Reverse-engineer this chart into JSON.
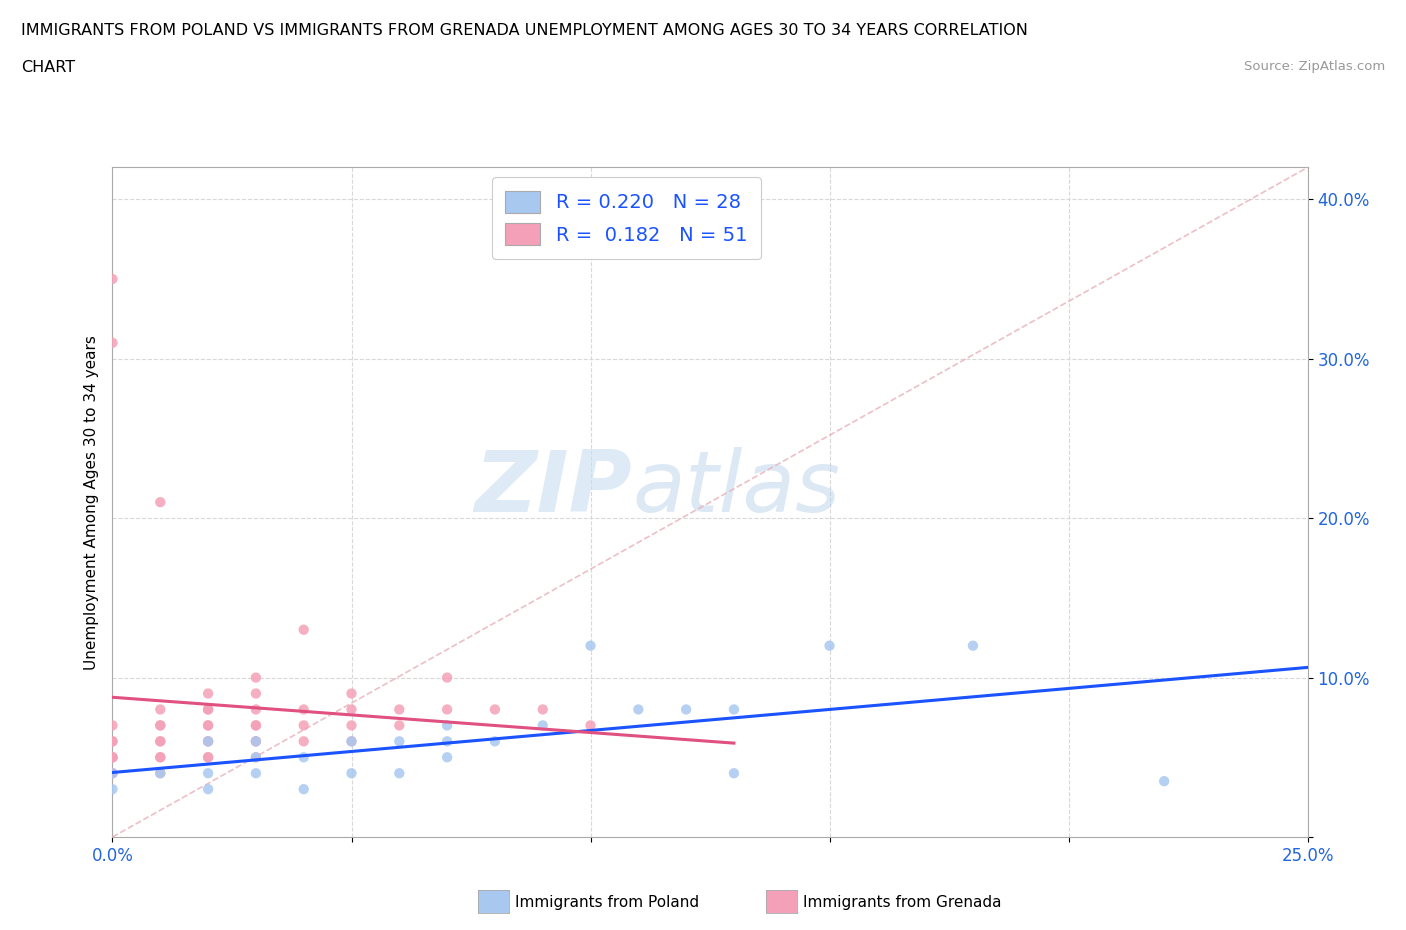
{
  "title_line1": "IMMIGRANTS FROM POLAND VS IMMIGRANTS FROM GRENADA UNEMPLOYMENT AMONG AGES 30 TO 34 YEARS CORRELATION",
  "title_line2": "CHART",
  "source_text": "Source: ZipAtlas.com",
  "ylabel": "Unemployment Among Ages 30 to 34 years",
  "xlim": [
    0.0,
    0.25
  ],
  "ylim": [
    0.0,
    0.42
  ],
  "x_ticks": [
    0.0,
    0.05,
    0.1,
    0.15,
    0.2,
    0.25
  ],
  "x_tick_labels": [
    "0.0%",
    "",
    "",
    "",
    "",
    "25.0%"
  ],
  "y_ticks": [
    0.0,
    0.1,
    0.2,
    0.3,
    0.4
  ],
  "y_tick_labels": [
    "",
    "10.0%",
    "20.0%",
    "30.0%",
    "40.0%"
  ],
  "poland_color": "#a8c8f0",
  "grenada_color": "#f4a0b8",
  "poland_R": 0.22,
  "poland_N": 28,
  "grenada_R": 0.182,
  "grenada_N": 51,
  "poland_line_color": "#1a53ff",
  "grenada_line_color": "#e05080",
  "diag_line_color": "#e8b0b8",
  "legend_R_color": "#1a53ff",
  "watermark_ZIP": "ZIP",
  "watermark_atlas": "atlas",
  "poland_x": [
    0.0,
    0.0,
    0.01,
    0.02,
    0.02,
    0.02,
    0.03,
    0.03,
    0.03,
    0.04,
    0.04,
    0.05,
    0.05,
    0.06,
    0.06,
    0.07,
    0.07,
    0.07,
    0.08,
    0.09,
    0.1,
    0.11,
    0.12,
    0.13,
    0.13,
    0.15,
    0.18,
    0.22
  ],
  "poland_y": [
    0.03,
    0.04,
    0.04,
    0.03,
    0.04,
    0.06,
    0.04,
    0.05,
    0.06,
    0.03,
    0.05,
    0.04,
    0.06,
    0.04,
    0.06,
    0.05,
    0.06,
    0.07,
    0.06,
    0.07,
    0.12,
    0.08,
    0.08,
    0.08,
    0.04,
    0.12,
    0.12,
    0.035
  ],
  "grenada_x": [
    0.0,
    0.0,
    0.0,
    0.0,
    0.0,
    0.0,
    0.0,
    0.0,
    0.0,
    0.0,
    0.01,
    0.01,
    0.01,
    0.01,
    0.01,
    0.01,
    0.01,
    0.01,
    0.01,
    0.02,
    0.02,
    0.02,
    0.02,
    0.02,
    0.02,
    0.02,
    0.02,
    0.02,
    0.03,
    0.03,
    0.03,
    0.03,
    0.03,
    0.03,
    0.03,
    0.03,
    0.04,
    0.04,
    0.04,
    0.04,
    0.05,
    0.05,
    0.05,
    0.05,
    0.06,
    0.06,
    0.07,
    0.07,
    0.08,
    0.09,
    0.1
  ],
  "grenada_y": [
    0.04,
    0.04,
    0.05,
    0.05,
    0.05,
    0.06,
    0.06,
    0.07,
    0.35,
    0.31,
    0.04,
    0.05,
    0.05,
    0.06,
    0.06,
    0.07,
    0.07,
    0.08,
    0.21,
    0.05,
    0.05,
    0.06,
    0.06,
    0.07,
    0.07,
    0.08,
    0.08,
    0.09,
    0.05,
    0.06,
    0.06,
    0.07,
    0.07,
    0.08,
    0.09,
    0.1,
    0.06,
    0.07,
    0.08,
    0.13,
    0.06,
    0.07,
    0.08,
    0.09,
    0.07,
    0.08,
    0.08,
    0.1,
    0.08,
    0.08,
    0.07
  ]
}
